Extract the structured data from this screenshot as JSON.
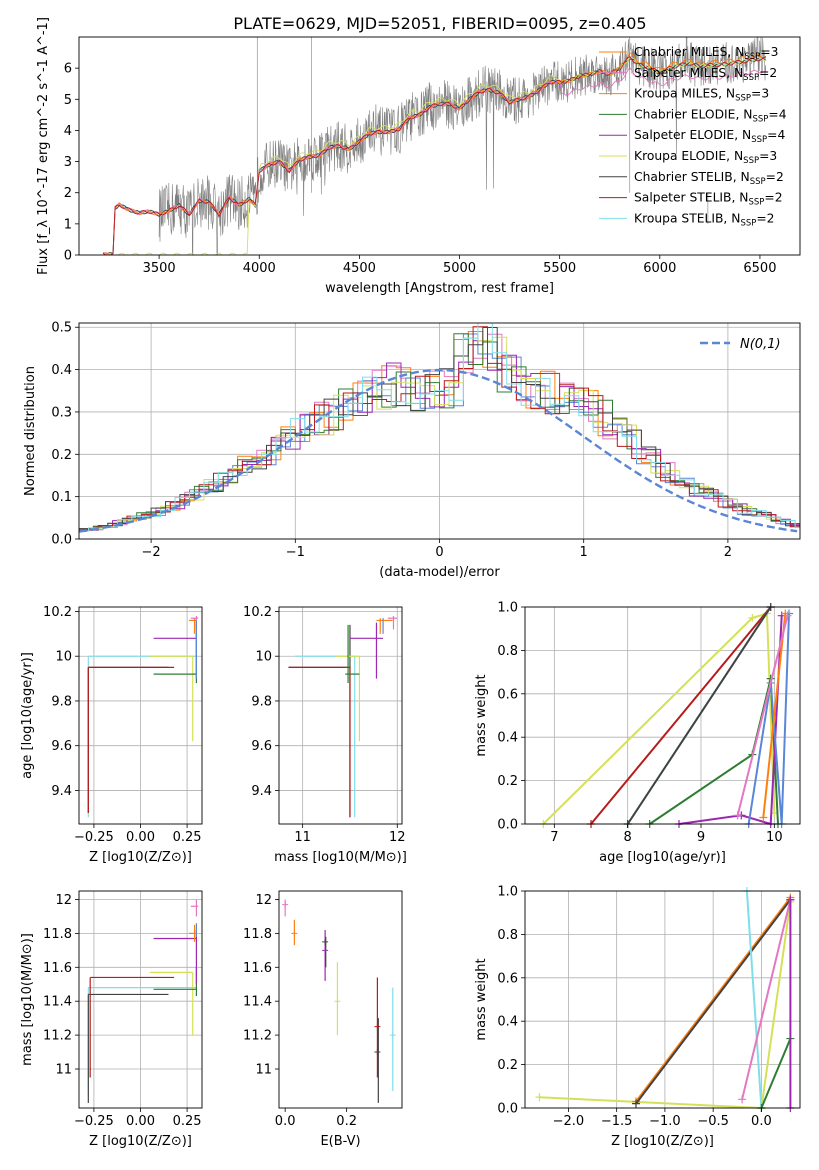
{
  "title": "PLATE=0629, MJD=52051, FIBERID=0095, z=0.405",
  "colors": {
    "Chabrier MILES": "#ff7f0e",
    "Salpeter MILES": "#e377c2",
    "Kroupa MILES": "#ff7f0e",
    "Chabrier ELODIE": "#2e7d32",
    "Salpeter ELODIE": "#9c27b0",
    "Kroupa ELODIE": "#d4e157",
    "Chabrier STELIB": "#424242",
    "Salpeter STELIB": "#b71c1c",
    "Kroupa STELIB": "#80deea",
    "normal": "#5b86d6",
    "data": "#7f7f7f"
  },
  "chart_data": [
    {
      "id": "spectrum",
      "type": "line",
      "xlabel": "wavelength [Angstrom, rest frame]",
      "ylabel": "Flux [f_λ 10^-17 erg cm^-2 s^-1 A^-1]",
      "xlim": [
        3100,
        6700
      ],
      "ylim": [
        0,
        7
      ],
      "xticks": [
        3500,
        4000,
        4500,
        5000,
        5500,
        6000,
        6500
      ],
      "yticks": [
        0,
        1,
        2,
        3,
        4,
        5,
        6
      ],
      "grid": false,
      "legend_position": "top-right",
      "legend": [
        {
          "label": "Chabrier MILES, N_SSP=3",
          "color": "#ff7f0e"
        },
        {
          "label": "Salpeter MILES, N_SSP=2",
          "color": "#e377c2"
        },
        {
          "label": "Kroupa MILES, N_SSP=3",
          "color": "#ff7f0e"
        },
        {
          "label": "Chabrier ELODIE, N_SSP=4",
          "color": "#2e7d32"
        },
        {
          "label": "Salpeter ELODIE, N_SSP=4",
          "color": "#9c27b0"
        },
        {
          "label": "Kroupa ELODIE, N_SSP=3",
          "color": "#d4e157"
        },
        {
          "label": "Chabrier STELIB, N_SSP=2",
          "color": "#424242"
        },
        {
          "label": "Salpeter STELIB, N_SSP=2",
          "color": "#b71c1c"
        },
        {
          "label": "Kroupa STELIB, N_SSP=2",
          "color": "#80deea"
        }
      ],
      "model": {
        "x": [
          3220,
          3270,
          3280,
          3300,
          3350,
          3400,
          3450,
          3500,
          3550,
          3600,
          3650,
          3700,
          3750,
          3800,
          3850,
          3900,
          3950,
          3980,
          4000,
          4050,
          4100,
          4150,
          4200,
          4250,
          4300,
          4350,
          4400,
          4450,
          4500,
          4550,
          4600,
          4650,
          4700,
          4750,
          4800,
          4850,
          4900,
          4950,
          5000,
          5050,
          5100,
          5150,
          5200,
          5250,
          5300,
          5350,
          5400,
          5450,
          5500,
          5550,
          5600,
          5650,
          5700,
          5750,
          5800,
          5850,
          5900,
          5950,
          6000,
          6050,
          6100,
          6150,
          6200,
          6250,
          6300,
          6350,
          6400,
          6450,
          6500,
          6530
        ],
        "y": [
          0.02,
          0.02,
          1.5,
          1.62,
          1.45,
          1.35,
          1.4,
          1.3,
          1.42,
          1.6,
          1.3,
          1.75,
          1.7,
          1.3,
          1.85,
          1.6,
          1.8,
          1.6,
          2.7,
          2.9,
          3.0,
          2.7,
          3.05,
          3.15,
          3.2,
          3.45,
          3.5,
          3.4,
          3.65,
          3.9,
          3.95,
          3.95,
          4.05,
          4.4,
          4.5,
          4.75,
          4.85,
          4.85,
          4.7,
          5.0,
          5.25,
          5.3,
          5.2,
          4.9,
          5.0,
          5.1,
          5.3,
          5.55,
          5.55,
          5.6,
          5.75,
          5.8,
          5.9,
          5.8,
          6.0,
          6.35,
          6.1,
          6.0,
          5.85,
          6.0,
          6.1,
          6.15,
          6.05,
          6.1,
          6.1,
          6.15,
          6.2,
          6.25,
          6.3,
          6.3
        ]
      }
    },
    {
      "id": "residual-histogram",
      "type": "line",
      "xlabel": "(data-model)/error",
      "ylabel": "Normed distribution",
      "xlim": [
        -2.5,
        2.5
      ],
      "ylim": [
        0,
        0.51
      ],
      "xticks": [
        -2,
        -1,
        0,
        1,
        2
      ],
      "yticks": [
        0.0,
        0.1,
        0.2,
        0.3,
        0.4,
        0.5
      ],
      "grid": true,
      "legend_position": "top-right",
      "series": [
        {
          "name": "N(0,1)",
          "style": "dashed",
          "color": "#5b86d6",
          "function": "standard-normal"
        }
      ],
      "histogram_envelope": {
        "x": [
          -2.5,
          -2.3,
          -2.1,
          -1.9,
          -1.7,
          -1.5,
          -1.3,
          -1.1,
          -0.9,
          -0.7,
          -0.5,
          -0.3,
          -0.1,
          0.1,
          0.3,
          0.5,
          0.7,
          0.9,
          1.1,
          1.3,
          1.5,
          1.7,
          1.9,
          2.1,
          2.3,
          2.5
        ],
        "y": [
          0.02,
          0.03,
          0.05,
          0.07,
          0.1,
          0.14,
          0.18,
          0.22,
          0.27,
          0.3,
          0.34,
          0.37,
          0.35,
          0.36,
          0.4,
          0.38,
          0.35,
          0.33,
          0.3,
          0.24,
          0.18,
          0.13,
          0.1,
          0.07,
          0.05,
          0.03
        ]
      }
    },
    {
      "id": "age-vs-Z",
      "type": "scatter",
      "xlabel": "Z [log10(Z/Z⊙)]",
      "ylabel": "age [log10(age/yr)]",
      "xlim": [
        -0.33,
        0.33
      ],
      "ylim": [
        9.25,
        10.22
      ],
      "xticks": [
        -0.25,
        0.0,
        0.25
      ],
      "yticks": [
        9.4,
        9.6,
        9.8,
        10.0,
        10.2
      ],
      "grid": true
    },
    {
      "id": "age-vs-mass",
      "type": "scatter",
      "xlabel": "mass [log10(M/M⊙)]",
      "xlim": [
        10.75,
        12.05
      ],
      "ylim": [
        9.25,
        10.22
      ],
      "xticks": [
        11,
        12
      ],
      "yticks": [
        9.4,
        9.6,
        9.8,
        10.0,
        10.2
      ],
      "grid": true
    },
    {
      "id": "massweight-vs-age",
      "type": "line",
      "xlabel": "age [log10(age/yr)]",
      "ylabel": "mass weight",
      "xlim": [
        6.6,
        10.35
      ],
      "ylim": [
        0,
        1
      ],
      "xticks": [
        7,
        8,
        9,
        10
      ],
      "yticks": [
        0.0,
        0.2,
        0.4,
        0.6,
        0.8,
        1.0
      ],
      "grid": true,
      "series": [
        {
          "name": "Kroupa ELODIE",
          "color": "#d4e157",
          "x": [
            6.85,
            9.7,
            9.9,
            10.0
          ],
          "y": [
            0.0,
            0.95,
            0.97,
            0.05
          ]
        },
        {
          "name": "Salpeter STELIB",
          "color": "#b71c1c",
          "x": [
            7.5,
            9.95
          ],
          "y": [
            0.0,
            1.0
          ]
        },
        {
          "name": "Kroupa STELIB",
          "color": "#80deea",
          "x": [
            8.0,
            9.95
          ],
          "y": [
            0.0,
            1.0
          ]
        },
        {
          "name": "Chabrier STELIB",
          "color": "#424242",
          "x": [
            8.0,
            9.95
          ],
          "y": [
            0.0,
            1.0
          ]
        },
        {
          "name": "Chabrier ELODIE",
          "color": "#2e7d32",
          "x": [
            8.3,
            9.7,
            9.95,
            10.05
          ],
          "y": [
            0.0,
            0.32,
            0.67,
            0.0
          ]
        },
        {
          "name": "Salpeter ELODIE",
          "color": "#9c27b0",
          "x": [
            8.7,
            9.55,
            9.95,
            10.1
          ],
          "y": [
            0.0,
            0.04,
            0.0,
            0.96
          ]
        },
        {
          "name": "Chabrier MILES",
          "color": "#5b86d6",
          "x": [
            9.65,
            9.95,
            10.1,
            10.2
          ],
          "y": [
            0.0,
            0.65,
            0.0,
            0.97
          ]
        },
        {
          "name": "Kroupa MILES",
          "color": "#ff7f0e",
          "x": [
            9.85,
            10.15
          ],
          "y": [
            0.03,
            0.97
          ]
        },
        {
          "name": "Salpeter MILES",
          "color": "#e377c2",
          "x": [
            9.5,
            10.18
          ],
          "y": [
            0.04,
            0.96
          ]
        }
      ]
    },
    {
      "id": "mass-vs-Z",
      "type": "scatter",
      "xlabel": "Z [log10(Z/Z⊙)]",
      "ylabel": "mass [log10(M/M⊙)]",
      "xlim": [
        -0.33,
        0.33
      ],
      "ylim": [
        10.77,
        12.05
      ],
      "xticks": [
        -0.25,
        0.0,
        0.25
      ],
      "yticks": [
        11.0,
        11.2,
        11.4,
        11.6,
        11.8,
        12.0
      ],
      "grid": true
    },
    {
      "id": "mass-vs-EBV",
      "type": "scatter",
      "xlabel": "E(B-V)",
      "xlim": [
        -0.02,
        0.38
      ],
      "ylim": [
        10.77,
        12.05
      ],
      "xticks": [
        0.0,
        0.2
      ],
      "yticks": [
        11.0,
        11.2,
        11.4,
        11.6,
        11.8,
        12.0
      ],
      "grid": false,
      "points": [
        {
          "color": "#e377c2",
          "x": 0.0,
          "y": 11.97
        },
        {
          "color": "#ff7f0e",
          "x": 0.03,
          "y": 11.8
        },
        {
          "color": "#9c27b0",
          "x": 0.13,
          "y": 11.7
        },
        {
          "color": "#424242",
          "x": 0.13,
          "y": 11.75
        },
        {
          "color": "#d4e157",
          "x": 0.17,
          "y": 11.4
        },
        {
          "color": "#b71c1c",
          "x": 0.3,
          "y": 11.25
        },
        {
          "color": "#424242",
          "x": 0.3,
          "y": 11.1
        },
        {
          "color": "#80deea",
          "x": 0.35,
          "y": 11.2
        }
      ]
    },
    {
      "id": "massweight-vs-Z",
      "type": "line",
      "xlabel": "Z [log10(Z/Z⊙)]",
      "ylabel": "mass weight",
      "xlim": [
        -2.45,
        0.4
      ],
      "ylim": [
        0,
        1
      ],
      "xticks": [
        -2.0,
        -1.5,
        -1.0,
        -0.5,
        0.0
      ],
      "yticks": [
        0.0,
        0.2,
        0.4,
        0.6,
        0.8,
        1.0
      ],
      "grid": true,
      "series": [
        {
          "name": "Kroupa ELODIE",
          "color": "#d4e157",
          "x": [
            -2.3,
            0.0,
            0.3
          ],
          "y": [
            0.05,
            0.0,
            0.95
          ]
        },
        {
          "name": "Kroupa MILES",
          "color": "#ff7f0e",
          "x": [
            -1.3,
            0.3
          ],
          "y": [
            0.03,
            0.97
          ]
        },
        {
          "name": "Chabrier STELIB",
          "color": "#424242",
          "x": [
            -1.3,
            0.3
          ],
          "y": [
            0.02,
            0.96
          ]
        },
        {
          "name": "Kroupa STELIB",
          "color": "#80deea",
          "x": [
            -0.15,
            0.0
          ],
          "y": [
            1.0,
            0.0
          ]
        },
        {
          "name": "Salpeter MILES",
          "color": "#e377c2",
          "x": [
            -0.2,
            0.3
          ],
          "y": [
            0.04,
            0.96
          ]
        },
        {
          "name": "Chabrier ELODIE",
          "color": "#2e7d32",
          "x": [
            0.0,
            0.3
          ],
          "y": [
            0.0,
            0.32
          ]
        },
        {
          "name": "Salpeter ELODIE",
          "color": "#9c27b0",
          "x": [
            0.3,
            0.3
          ],
          "y": [
            0.0,
            0.96
          ]
        }
      ]
    }
  ]
}
